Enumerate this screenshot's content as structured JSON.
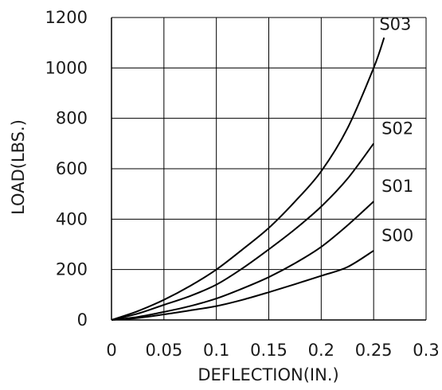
{
  "chart_data": {
    "type": "line",
    "title": "",
    "xlabel": "DEFLECTION(IN.)",
    "ylabel": "LOAD(LBS.)",
    "xlim": [
      0,
      0.3
    ],
    "ylim": [
      0,
      1200
    ],
    "x_ticks": [
      0,
      0.05,
      0.1,
      0.15,
      0.2,
      0.25,
      0.3
    ],
    "x_tick_labels": [
      "0",
      "0.05",
      "0.1",
      "0.15",
      "0.2",
      "0.25",
      "0.3"
    ],
    "y_ticks": [
      0,
      200,
      400,
      600,
      800,
      1000,
      1200
    ],
    "y_tick_labels": [
      "0",
      "200",
      "400",
      "600",
      "800",
      "1000",
      "1200"
    ],
    "grid": true,
    "line_color": "#000000",
    "grid_color": "#000000",
    "series": [
      {
        "name": "S00",
        "x": [
          0,
          0.025,
          0.05,
          0.075,
          0.1,
          0.125,
          0.15,
          0.175,
          0.2,
          0.225,
          0.25
        ],
        "y": [
          0,
          8,
          22,
          38,
          55,
          80,
          110,
          142,
          175,
          210,
          275
        ]
      },
      {
        "name": "S01",
        "x": [
          0,
          0.025,
          0.05,
          0.075,
          0.1,
          0.125,
          0.15,
          0.175,
          0.2,
          0.225,
          0.25
        ],
        "y": [
          0,
          12,
          32,
          55,
          85,
          125,
          170,
          225,
          290,
          375,
          470
        ]
      },
      {
        "name": "S02",
        "x": [
          0,
          0.025,
          0.05,
          0.075,
          0.1,
          0.125,
          0.15,
          0.175,
          0.2,
          0.225,
          0.25
        ],
        "y": [
          0,
          25,
          60,
          95,
          140,
          205,
          280,
          360,
          450,
          560,
          700
        ]
      },
      {
        "name": "S03",
        "x": [
          0,
          0.025,
          0.05,
          0.075,
          0.1,
          0.125,
          0.15,
          0.175,
          0.2,
          0.225,
          0.25,
          0.26
        ],
        "y": [
          0,
          35,
          80,
          135,
          200,
          280,
          365,
          470,
          590,
          760,
          1000,
          1120
        ]
      }
    ]
  }
}
